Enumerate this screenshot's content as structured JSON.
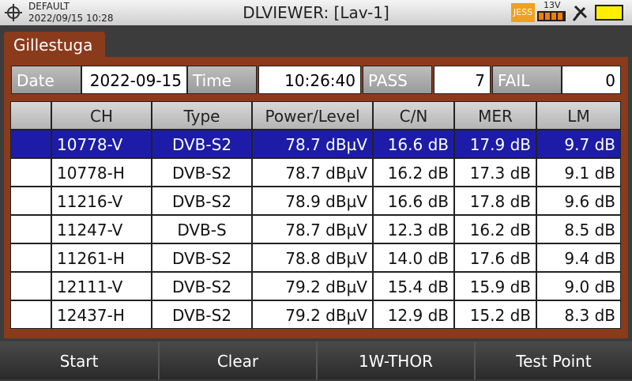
{
  "status_bar": {
    "profile": "DEFAULT",
    "datetime": "2022/09/15 10:28",
    "title": "DLVIEWER: [Lav-1]",
    "user": "JESS",
    "voltage": "13V"
  },
  "tab": "Gillestuga",
  "summary": {
    "date_label": "Date",
    "date": "2022-09-15",
    "time_label": "Time",
    "time": "10:26:40",
    "pass_label": "PASS",
    "pass": 7,
    "fail_label": "FAIL",
    "fail": 0
  },
  "table": {
    "columns": [
      "CH",
      "Type",
      "Power/Level",
      "C/N",
      "MER",
      "LM"
    ],
    "rows": [
      [
        "10778-V",
        "DVB-S2",
        "78.7 dBµV",
        "16.6 dB",
        "17.9 dB",
        "9.7 dB"
      ],
      [
        "10778-H",
        "DVB-S2",
        "78.7 dBµV",
        "16.2 dB",
        "17.3 dB",
        "9.1 dB"
      ],
      [
        "11216-V",
        "DVB-S2",
        "78.9 dBµV",
        "16.6 dB",
        "17.8 dB",
        "9.6 dB"
      ],
      [
        "11247-V",
        "DVB-S",
        "78.7 dBµV",
        "12.3 dB",
        "16.2 dB",
        "8.5 dB"
      ],
      [
        "11261-H",
        "DVB-S2",
        "78.8 dBµV",
        "14.0 dB",
        "17.6 dB",
        "9.4 dB"
      ],
      [
        "12111-V",
        "DVB-S2",
        "79.2 dBµV",
        "15.4 dB",
        "15.9 dB",
        "9.0 dB"
      ],
      [
        "12437-H",
        "DVB-S2",
        "79.2 dBµV",
        "12.9 dB",
        "15.2 dB",
        "8.3 dB"
      ]
    ],
    "selected_row": 0
  },
  "softkeys": [
    "Start",
    "Clear",
    "1W-THOR",
    "Test Point"
  ]
}
